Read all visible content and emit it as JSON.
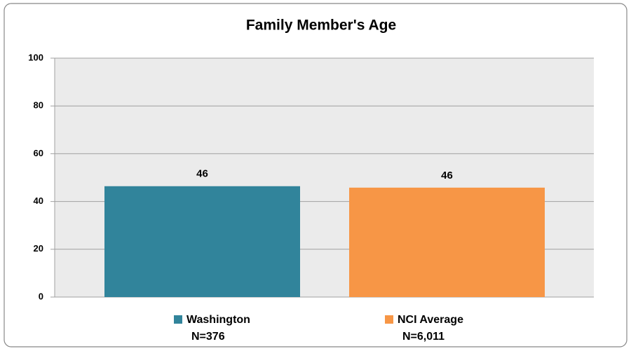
{
  "chart_data": {
    "type": "bar",
    "title": "Family Member's Age",
    "categories": [
      "Washington",
      "NCI Average"
    ],
    "category_notes": [
      "N=376",
      "N=6,011"
    ],
    "values": [
      46.4,
      45.8
    ],
    "value_labels": [
      "46",
      "46"
    ],
    "colors": [
      "#31849b",
      "#f79646"
    ],
    "ylim": [
      0,
      100
    ],
    "yticks": [
      0,
      20,
      40,
      60,
      80,
      100
    ],
    "grid": true
  }
}
